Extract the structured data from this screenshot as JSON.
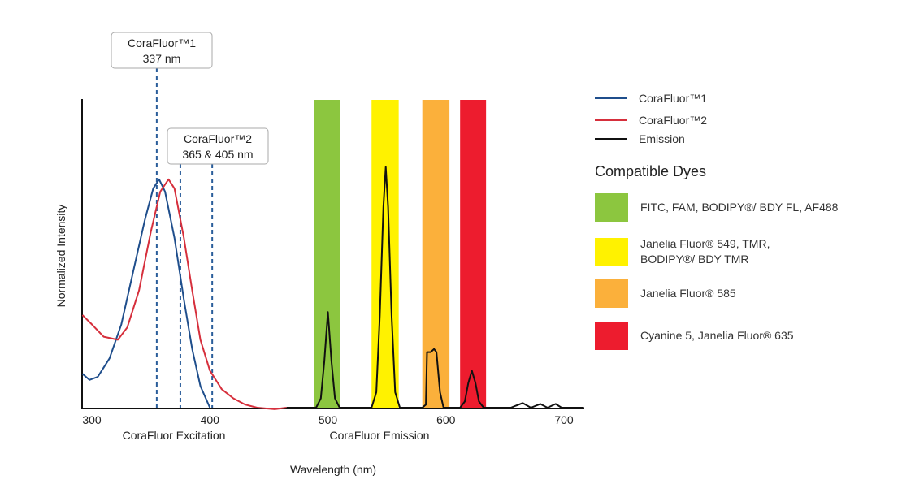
{
  "chart_data": {
    "type": "line",
    "title": "",
    "xlabel": "Wavelength (nm)",
    "ylabel": "Normalized Intensity",
    "xlim": [
      292,
      717
    ],
    "ylim": [
      0,
      1
    ],
    "x_ticks": [
      300,
      400,
      500,
      600,
      700
    ],
    "x_region_labels": {
      "excitation": "CoraFluor Excitation",
      "emission": "CoraFluor Emission"
    },
    "grid": false,
    "series": [
      {
        "name": "CoraFluor™1",
        "color": "#1f4e8c",
        "points": [
          [
            292,
            0.11
          ],
          [
            298,
            0.09
          ],
          [
            305,
            0.1
          ],
          [
            315,
            0.16
          ],
          [
            325,
            0.27
          ],
          [
            335,
            0.44
          ],
          [
            345,
            0.61
          ],
          [
            352,
            0.71
          ],
          [
            357,
            0.74
          ],
          [
            362,
            0.7
          ],
          [
            370,
            0.55
          ],
          [
            378,
            0.35
          ],
          [
            385,
            0.19
          ],
          [
            392,
            0.07
          ],
          [
            400,
            0
          ]
        ]
      },
      {
        "name": "CoraFluor™2",
        "color": "#d62f3c",
        "points": [
          [
            292,
            0.3
          ],
          [
            300,
            0.27
          ],
          [
            310,
            0.23
          ],
          [
            322,
            0.22
          ],
          [
            330,
            0.26
          ],
          [
            340,
            0.38
          ],
          [
            350,
            0.57
          ],
          [
            358,
            0.7
          ],
          [
            365,
            0.74
          ],
          [
            370,
            0.71
          ],
          [
            378,
            0.55
          ],
          [
            385,
            0.38
          ],
          [
            392,
            0.22
          ],
          [
            400,
            0.12
          ],
          [
            410,
            0.06
          ],
          [
            420,
            0.03
          ],
          [
            430,
            0.01
          ],
          [
            440,
            0.0
          ],
          [
            455,
            -0.005
          ],
          [
            465,
            0
          ]
        ]
      },
      {
        "name": "Emission",
        "color": "#111111",
        "points": [
          [
            465,
            0
          ],
          [
            490,
            0
          ],
          [
            494,
            0.03
          ],
          [
            497,
            0.15
          ],
          [
            500,
            0.31
          ],
          [
            503,
            0.15
          ],
          [
            506,
            0.03
          ],
          [
            510,
            0
          ],
          [
            537,
            0
          ],
          [
            541,
            0.05
          ],
          [
            544,
            0.3
          ],
          [
            547,
            0.65
          ],
          [
            549,
            0.78
          ],
          [
            551,
            0.65
          ],
          [
            554,
            0.3
          ],
          [
            557,
            0.05
          ],
          [
            561,
            0
          ],
          [
            580,
            0
          ],
          [
            583,
            0.01
          ],
          [
            584,
            0.18
          ],
          [
            587,
            0.18
          ],
          [
            590,
            0.19
          ],
          [
            592,
            0.18
          ],
          [
            595,
            0.05
          ],
          [
            598,
            0
          ],
          [
            612,
            0
          ],
          [
            616,
            0.02
          ],
          [
            619,
            0.08
          ],
          [
            622,
            0.12
          ],
          [
            625,
            0.08
          ],
          [
            628,
            0.02
          ],
          [
            632,
            0
          ],
          [
            655,
            0
          ],
          [
            665,
            0.015
          ],
          [
            672,
            0
          ],
          [
            680,
            0.012
          ],
          [
            686,
            0
          ],
          [
            693,
            0.012
          ],
          [
            698,
            0
          ],
          [
            717,
            0
          ]
        ]
      }
    ],
    "excitation_lines": [
      355,
      375,
      402
    ],
    "annotations": [
      {
        "line1": "CoraFluor™1",
        "line2": "337 nm"
      },
      {
        "line1": "CoraFluor™2",
        "line2": "365 & 405 nm"
      }
    ],
    "dye_bands": [
      {
        "range": [
          488,
          510
        ],
        "color": "#8cc63f",
        "label": "FITC, FAM, BODIPY®/ BDY FL, AF488"
      },
      {
        "range": [
          537,
          560
        ],
        "color": "#fff200",
        "label": "Janelia Fluor® 549, TMR, BODIPY®/ BDY TMR"
      },
      {
        "range": [
          580,
          603
        ],
        "color": "#fbb03b",
        "label": "Janelia Fluor® 585"
      },
      {
        "range": [
          612,
          634
        ],
        "color": "#ed1c2e",
        "label": "Cyanine 5, Janelia Fluor® 635"
      }
    ],
    "legend_position": "right"
  },
  "legend": {
    "dyes_title": "Compatible Dyes"
  }
}
